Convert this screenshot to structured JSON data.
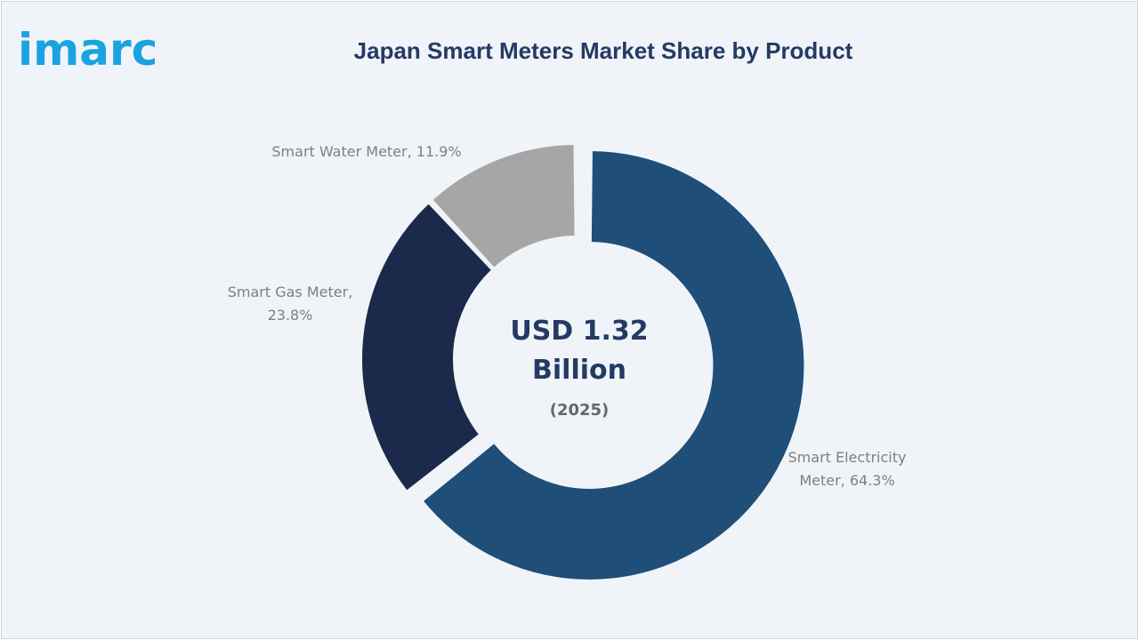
{
  "brand": {
    "logo_text": "imarc",
    "logo_color": "#1aa3e0"
  },
  "chart_data": {
    "type": "pie",
    "variant": "donut",
    "title": "Japan Smart Meters Market Share by Product",
    "center_label": {
      "value_line1": "USD 1.32",
      "value_line2": "Billion",
      "year": "(2025)"
    },
    "start_angle_deg": 0,
    "direction": "clockwise",
    "exploded_slice": "Smart Electricity Meter",
    "slices": [
      {
        "name": "Smart Electricity Meter",
        "value": 64.3,
        "label_lines": [
          "Smart Electricity",
          "Meter, 64.3%"
        ],
        "color": "#1f4e79"
      },
      {
        "name": "Smart Gas Meter",
        "value": 23.8,
        "label_lines": [
          "Smart Gas Meter,",
          "23.8%"
        ],
        "color": "#1b2a4a"
      },
      {
        "name": "Smart Water Meter",
        "value": 11.9,
        "label_lines": [
          "Smart Water Meter, 11.9%"
        ],
        "color": "#a6a6a6"
      }
    ],
    "colors": {
      "title": "#243a63",
      "center_text": "#243a63",
      "center_year": "#666666",
      "labels": "#7f7f7f",
      "background": "#f0f4f9"
    }
  }
}
